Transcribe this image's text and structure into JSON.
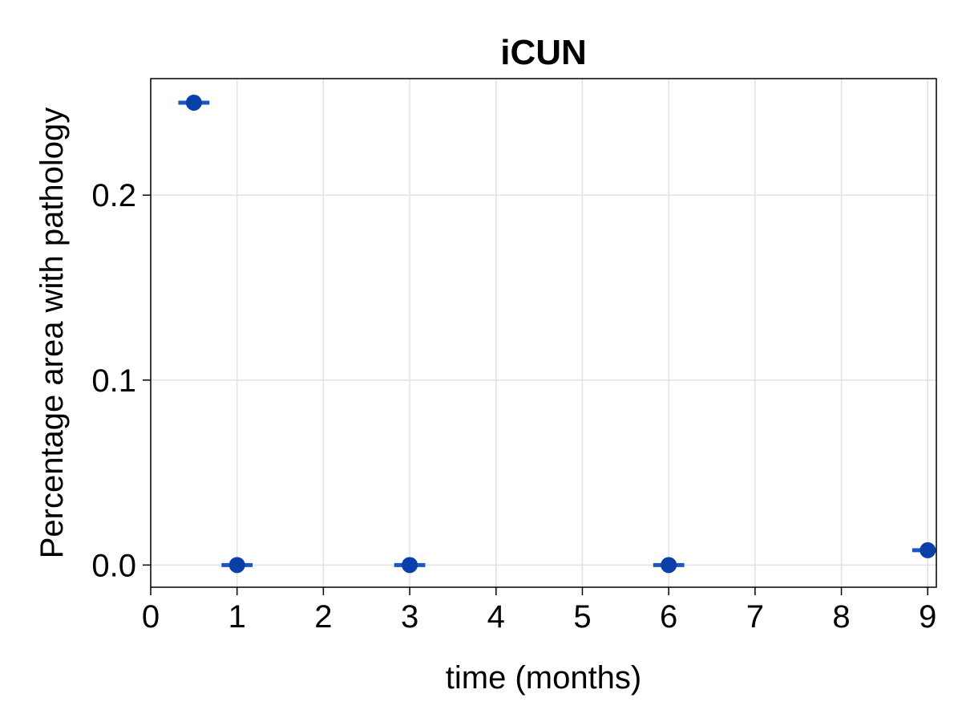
{
  "chart_data": {
    "type": "scatter",
    "title": "iCUN",
    "xlabel": "time (months)",
    "ylabel": "Percentage area with pathology",
    "xlim": [
      0,
      9.1
    ],
    "ylim": [
      -0.012,
      0.263
    ],
    "x_ticks": [
      0,
      1,
      2,
      3,
      4,
      5,
      6,
      7,
      8,
      9
    ],
    "x_tick_labels": [
      "0",
      "1",
      "2",
      "3",
      "4",
      "5",
      "6",
      "7",
      "8",
      "9"
    ],
    "y_ticks": [
      0.0,
      0.1,
      0.2
    ],
    "y_tick_labels": [
      "0.0",
      "0.1",
      "0.2"
    ],
    "grid": true,
    "legend": "none",
    "series": [
      {
        "x": [
          0.5,
          1,
          3,
          6,
          9
        ],
        "y": [
          0.25,
          0.0,
          0.0,
          0.0,
          0.008
        ],
        "error_bar_type": "horizontal",
        "xerr": [
          0.18,
          0.18,
          0.18,
          0.18,
          0.18
        ]
      }
    ],
    "colors": {
      "marker": "#0a3fa8",
      "error_bar": "#1a56c4",
      "grid": "#e2e2e2",
      "axis": "#000000"
    }
  }
}
